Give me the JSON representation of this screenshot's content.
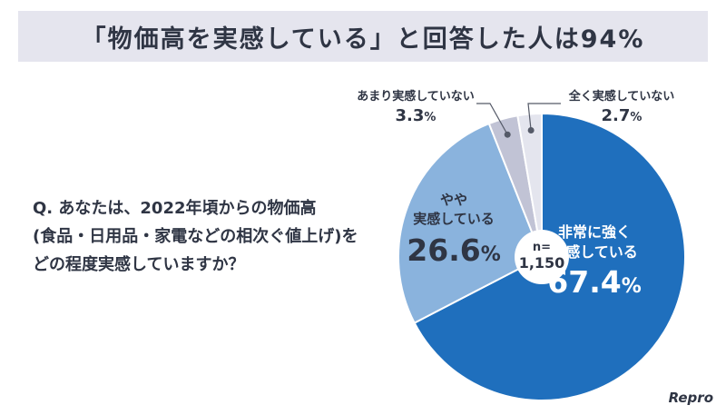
{
  "title": "「物価高を実感している」と回答した人は94%",
  "question": [
    "Q. あなたは、2022年頃からの物価高",
    "(食品・日用品・家電などの相次ぐ値上げ)を",
    "どの程度実感していますか？"
  ],
  "brand": "Repro",
  "chart_data": {
    "type": "pie",
    "title": "「物価高を実感している」と回答した人は94%",
    "center_label": {
      "line1": "n=",
      "line2": "1,150"
    },
    "slices": [
      {
        "label": "非常に強く実感している",
        "label_lines": [
          "非常に強く",
          "実感している"
        ],
        "value": 67.4,
        "value_text": "67.4",
        "color": "#1f6fbd"
      },
      {
        "label": "やや実感している",
        "label_lines": [
          "やや",
          "実感している"
        ],
        "value": 26.6,
        "value_text": "26.6",
        "color": "#8ab3dd"
      },
      {
        "label": "あまり実感していない",
        "label_lines": [
          "あまり実感していない"
        ],
        "value": 3.3,
        "value_text": "3.3",
        "color": "#c1c3d5"
      },
      {
        "label": "全く実感していない",
        "label_lines": [
          "全く実感していない"
        ],
        "value": 2.7,
        "value_text": "2.7",
        "color": "#e4e5ee"
      }
    ],
    "unit": "%"
  }
}
